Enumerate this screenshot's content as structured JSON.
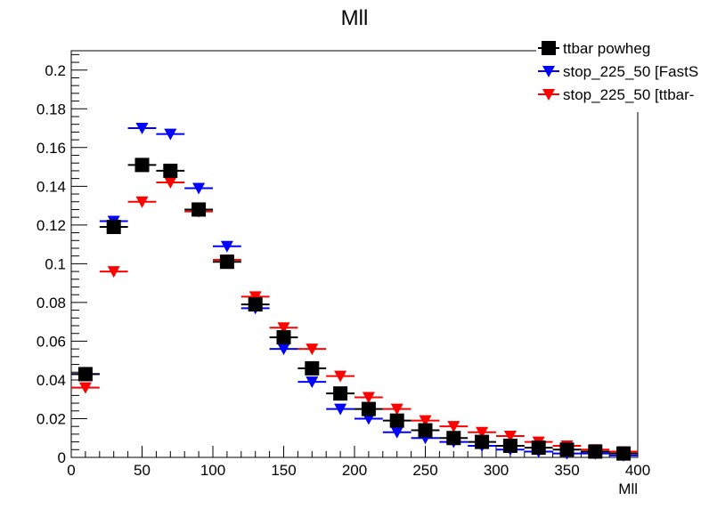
{
  "chart_data": {
    "type": "scatter",
    "title": "Mll",
    "xlabel": "Mll",
    "ylabel": "",
    "xlim": [
      0,
      400
    ],
    "ylim": [
      0,
      0.21
    ],
    "bin_width": 20,
    "x_ticks": [
      0,
      50,
      100,
      150,
      200,
      250,
      300,
      350,
      400
    ],
    "x_tick_labels": [
      "0",
      "50",
      "100",
      "150",
      "200",
      "250",
      "300",
      "350",
      "400"
    ],
    "y_ticks": [
      0,
      0.02,
      0.04,
      0.06,
      0.08,
      0.1,
      0.12,
      0.14,
      0.16,
      0.18,
      0.2
    ],
    "y_tick_labels": [
      "0",
      "0.02",
      "0.04",
      "0.06",
      "0.08",
      "0.1",
      "0.12",
      "0.14",
      "0.16",
      "0.18",
      "0.2"
    ],
    "x": [
      10,
      30,
      50,
      70,
      90,
      110,
      130,
      150,
      170,
      190,
      210,
      230,
      250,
      270,
      290,
      310,
      330,
      350,
      370,
      390
    ],
    "series": [
      {
        "name": "ttbar powheg",
        "marker": "square",
        "color": "#000000",
        "values": [
          0.043,
          0.119,
          0.151,
          0.148,
          0.128,
          0.101,
          0.079,
          0.062,
          0.046,
          0.033,
          0.025,
          0.019,
          0.014,
          0.01,
          0.008,
          0.006,
          0.005,
          0.004,
          0.003,
          0.002
        ]
      },
      {
        "name": "stop_225_50 [FastS",
        "marker": "triangle-down",
        "color": "#0000ff",
        "values": [
          0.043,
          0.122,
          0.17,
          0.167,
          0.139,
          0.109,
          0.077,
          0.056,
          0.039,
          0.025,
          0.02,
          0.013,
          0.01,
          0.008,
          0.006,
          0.004,
          0.003,
          0.002,
          0.002,
          0.001
        ]
      },
      {
        "name": "stop_225_50 [ttbar-",
        "marker": "triangle-down",
        "color": "#ff0000",
        "values": [
          0.036,
          0.096,
          0.132,
          0.142,
          0.127,
          0.102,
          0.083,
          0.067,
          0.056,
          0.042,
          0.031,
          0.025,
          0.019,
          0.016,
          0.013,
          0.011,
          0.008,
          0.006,
          0.004,
          0.003
        ]
      }
    ],
    "legend_position": "top-right",
    "grid": false
  }
}
